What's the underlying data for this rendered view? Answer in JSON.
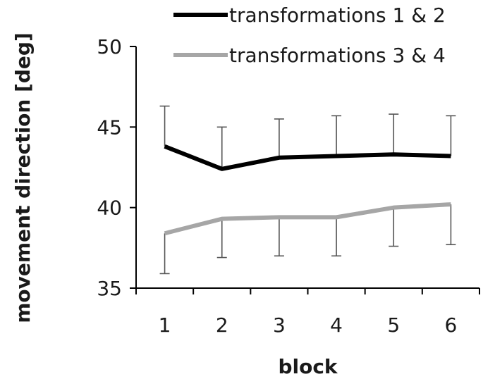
{
  "chart_data": {
    "type": "line",
    "xlabel": "block",
    "ylabel": "movement direction [deg]",
    "categories": [
      "1",
      "2",
      "3",
      "4",
      "5",
      "6"
    ],
    "ylim": [
      35,
      50
    ],
    "yticks": [
      "35",
      "40",
      "45",
      "50"
    ],
    "grid": false,
    "legend_position": "top-right",
    "series": [
      {
        "name": "transformations 1 & 2",
        "color": "#000000",
        "values": [
          43.8,
          42.4,
          43.1,
          43.2,
          43.3,
          43.2
        ],
        "error_upper": [
          46.3,
          45.0,
          45.5,
          45.7,
          45.8,
          45.7
        ]
      },
      {
        "name": "transformations 3 & 4",
        "color": "#a6a6a6",
        "values": [
          38.4,
          39.3,
          39.4,
          39.4,
          40.0,
          40.2
        ],
        "error_lower": [
          35.9,
          36.9,
          37.0,
          37.0,
          37.6,
          37.7
        ]
      }
    ]
  }
}
